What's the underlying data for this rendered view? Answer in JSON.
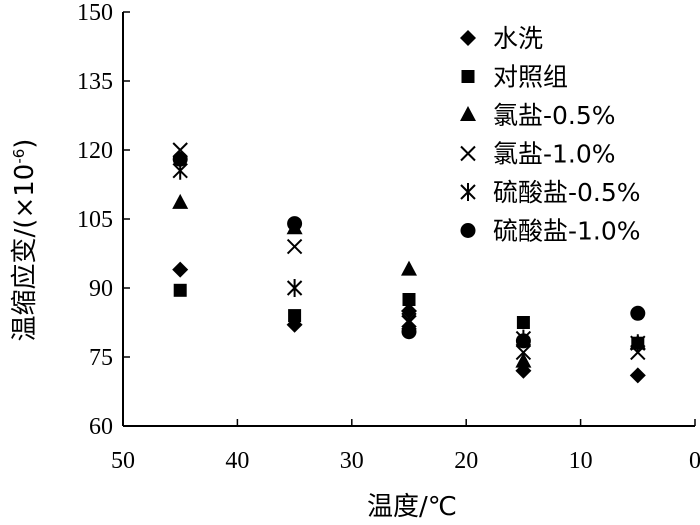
{
  "chart_data": {
    "type": "scatter",
    "xlabel": "温度/℃",
    "ylabel_main": "温缩应变/(×10",
    "ylabel_exp": "-6",
    "ylabel_close": ")",
    "xlim": [
      50,
      0
    ],
    "ylim": [
      60,
      150
    ],
    "x_ticks": [
      50,
      40,
      30,
      20,
      10,
      0
    ],
    "y_ticks": [
      60,
      75,
      90,
      105,
      120,
      135,
      150
    ],
    "legend_position": "top-right",
    "grid": false,
    "series": [
      {
        "name": "水洗",
        "marker": "diamond",
        "points": [
          [
            45,
            94
          ],
          [
            35,
            82
          ],
          [
            25,
            85
          ],
          [
            15,
            72
          ],
          [
            5,
            71
          ]
        ]
      },
      {
        "name": "对照组",
        "marker": "square",
        "points": [
          [
            45,
            89.5
          ],
          [
            35,
            84
          ],
          [
            25,
            87.5
          ],
          [
            15,
            82.5
          ],
          [
            5,
            78
          ]
        ]
      },
      {
        "name": "氯盐-0.5%",
        "marker": "triangle",
        "points": [
          [
            45,
            108.5
          ],
          [
            35,
            103
          ],
          [
            25,
            94
          ],
          [
            15,
            74
          ],
          [
            5,
            78
          ]
        ]
      },
      {
        "name": "氯盐-1.0%",
        "marker": "x",
        "points": [
          [
            45,
            120
          ],
          [
            35,
            99
          ],
          [
            25,
            83
          ],
          [
            15,
            76
          ],
          [
            5,
            76
          ]
        ]
      },
      {
        "name": "硫酸盐-0.5%",
        "marker": "asterisk",
        "points": [
          [
            45,
            115.5
          ],
          [
            35,
            90
          ],
          [
            25,
            82.5
          ],
          [
            15,
            79
          ],
          [
            5,
            78
          ]
        ]
      },
      {
        "name": "硫酸盐-1.0%",
        "marker": "circle",
        "points": [
          [
            45,
            118
          ],
          [
            35,
            104
          ],
          [
            25,
            80.5
          ],
          [
            15,
            78.5
          ],
          [
            5,
            84.5
          ]
        ]
      }
    ]
  }
}
